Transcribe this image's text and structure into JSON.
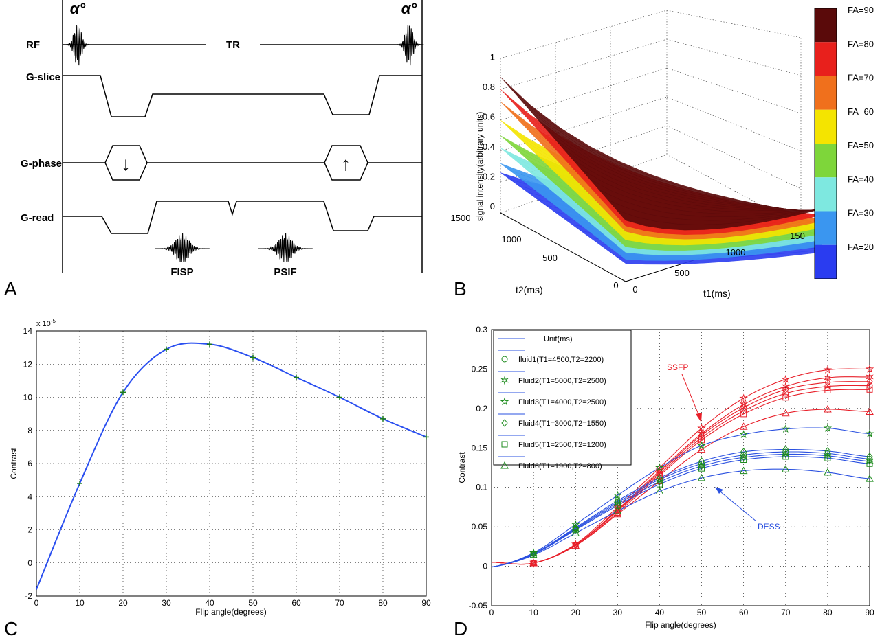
{
  "panel_a": {
    "letter": "A",
    "alpha_left": "α°",
    "alpha_right": "α°",
    "rf": "RF",
    "tr": "TR",
    "g_slice": "G-slice",
    "g_phase": "G-phase",
    "g_read": "G-read",
    "fisp": "FISP",
    "psif": "PSIF",
    "arrow_down": "↓",
    "arrow_up": "↑"
  },
  "panel_b": {
    "letter": "B",
    "zlabel": "signal intensity(arbitrary units)",
    "xlabel": "t1(ms)",
    "ylabel": "t2(ms)",
    "zticks": [
      "0",
      "0.2",
      "0.4",
      "0.6",
      "0.8",
      "1"
    ],
    "t2ticks": [
      "0",
      "500",
      "1000",
      "1500"
    ],
    "t1ticks": [
      "0",
      "500",
      "1000",
      "150"
    ],
    "colorbar": [
      {
        "label": "FA=90",
        "color": "#5a0a0a"
      },
      {
        "label": "FA=80",
        "color": "#e8201c"
      },
      {
        "label": "FA=70",
        "color": "#f0701c"
      },
      {
        "label": "FA=60",
        "color": "#f4e400"
      },
      {
        "label": "FA=50",
        "color": "#7ed63a"
      },
      {
        "label": "FA=40",
        "color": "#7ee8e0"
      },
      {
        "label": "FA=30",
        "color": "#3a96f0"
      },
      {
        "label": "FA=20",
        "color": "#2a3cf0"
      }
    ]
  },
  "panel_c": {
    "letter": "C",
    "xlabel": "Flip angle(degrees)",
    "ylabel": "Contrast",
    "exponent": "x 10",
    "exponent_power": "-5"
  },
  "panel_d": {
    "letter": "D",
    "xlabel": "Flip angle(degrees)",
    "ylabel": "Contrast",
    "legend_title": "Unit(ms)",
    "ssfp_label": "SSFP",
    "dess_label": "DESS",
    "legend": [
      "fluid1(T1=4500,T2=2200)",
      "Fluid2(T1=5000,T2=2500)",
      "Fluid3(T1=4000,T2=2500)",
      "Fluid4(T1=3000,T2=1550)",
      "Fluid5(T1=2500,T2=1200)",
      "Fluid6(T1=1900,T2=800)"
    ]
  },
  "chart_data": [
    {
      "type": "line",
      "xlabel": "Flip angle(degrees)",
      "ylabel": "Contrast",
      "y_scale_note": "x 10^-5",
      "xlim": [
        0,
        90
      ],
      "ylim": [
        -2,
        14
      ],
      "xticks": [
        0,
        10,
        20,
        30,
        40,
        50,
        60,
        70,
        80,
        90
      ],
      "yticks": [
        -2,
        0,
        2,
        4,
        6,
        8,
        10,
        12,
        14
      ],
      "grid": true,
      "series": [
        {
          "x": [
            10,
            20,
            30,
            40,
            50,
            60,
            70,
            80,
            90
          ],
          "values": [
            4.8,
            10.3,
            12.9,
            13.2,
            12.4,
            11.2,
            10.0,
            8.7,
            7.6
          ]
        }
      ]
    },
    {
      "type": "line",
      "xlabel": "Flip angle(degrees)",
      "ylabel": "Contrast",
      "xlim": [
        0,
        90
      ],
      "ylim": [
        -0.05,
        0.3
      ],
      "xticks": [
        0,
        10,
        20,
        30,
        40,
        50,
        60,
        70,
        80,
        90
      ],
      "yticks": [
        -0.05,
        0,
        0.05,
        0.1,
        0.15,
        0.2,
        0.25,
        0.3
      ],
      "grid": true,
      "legend_position": "top-left",
      "x": [
        10,
        20,
        30,
        40,
        50,
        60,
        70,
        80,
        90
      ],
      "series": [
        {
          "group": "SSFP",
          "marker": "star",
          "color": "#e8202a",
          "values": [
            0.004,
            0.028,
            0.075,
            0.125,
            0.175,
            0.213,
            0.237,
            0.249,
            0.25
          ]
        },
        {
          "group": "SSFP",
          "marker": "hexagram",
          "color": "#e8202a",
          "values": [
            0.004,
            0.027,
            0.072,
            0.121,
            0.168,
            0.205,
            0.228,
            0.239,
            0.24
          ]
        },
        {
          "group": "SSFP",
          "marker": "diamond",
          "color": "#e8202a",
          "values": [
            0.004,
            0.027,
            0.071,
            0.119,
            0.166,
            0.201,
            0.224,
            0.233,
            0.234
          ]
        },
        {
          "group": "SSFP",
          "marker": "circle",
          "color": "#e8202a",
          "values": [
            0.004,
            0.027,
            0.07,
            0.117,
            0.163,
            0.197,
            0.219,
            0.228,
            0.229
          ]
        },
        {
          "group": "SSFP",
          "marker": "square",
          "color": "#e8202a",
          "values": [
            0.004,
            0.026,
            0.068,
            0.115,
            0.16,
            0.193,
            0.214,
            0.223,
            0.224
          ]
        },
        {
          "group": "SSFP",
          "marker": "triangle",
          "color": "#e8202a",
          "values": [
            0.004,
            0.026,
            0.066,
            0.108,
            0.148,
            0.177,
            0.194,
            0.199,
            0.196
          ]
        },
        {
          "group": "DESS",
          "marker": "star",
          "color": "#2a50e0",
          "values": [
            0.017,
            0.053,
            0.09,
            0.125,
            0.153,
            0.167,
            0.174,
            0.175,
            0.168
          ]
        },
        {
          "group": "DESS",
          "marker": "diamond",
          "color": "#2a50e0",
          "values": [
            0.016,
            0.049,
            0.083,
            0.112,
            0.133,
            0.145,
            0.148,
            0.146,
            0.139
          ]
        },
        {
          "group": "DESS",
          "marker": "circle",
          "color": "#2a50e0",
          "values": [
            0.016,
            0.048,
            0.081,
            0.11,
            0.13,
            0.141,
            0.145,
            0.143,
            0.136
          ]
        },
        {
          "group": "DESS",
          "marker": "hexagram",
          "color": "#2a50e0",
          "values": [
            0.016,
            0.047,
            0.079,
            0.107,
            0.127,
            0.138,
            0.142,
            0.14,
            0.133
          ]
        },
        {
          "group": "DESS",
          "marker": "square",
          "color": "#2a50e0",
          "values": [
            0.015,
            0.046,
            0.077,
            0.104,
            0.124,
            0.135,
            0.139,
            0.137,
            0.13
          ]
        },
        {
          "group": "DESS",
          "marker": "triangle",
          "color": "#2a50e0",
          "values": [
            0.014,
            0.042,
            0.07,
            0.095,
            0.112,
            0.121,
            0.123,
            0.119,
            0.111
          ]
        }
      ]
    }
  ]
}
